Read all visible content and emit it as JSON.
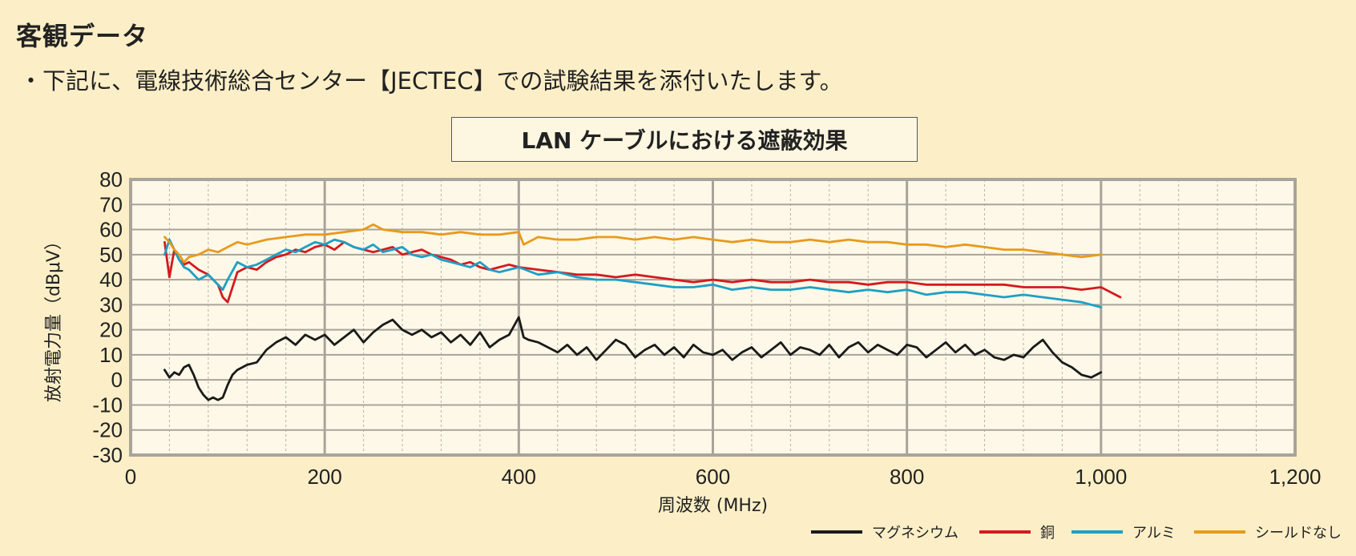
{
  "heading": "客観データ",
  "note": "・下記に、電線技術総合センター【JECTEC】での試験結果を添付いたします。",
  "colors": {
    "background": "#fcefc7",
    "plot_background": "#fdf8e8",
    "grid_major": "#a9a49a",
    "grid_minor": "#b8b3a8"
  },
  "chart_data": {
    "type": "line",
    "title": "LAN ケーブルにおける遮蔽効果",
    "xlabel": "周波数 (MHz)",
    "ylabel": "放射電力量（dBμV）",
    "xlim": [
      0,
      1200
    ],
    "ylim": [
      -30,
      80
    ],
    "xticks": [
      0,
      200,
      400,
      600,
      800,
      1000,
      1200
    ],
    "xtick_labels": [
      "0",
      "200",
      "400",
      "600",
      "800",
      "1,000",
      "1,200"
    ],
    "yticks": [
      -30,
      -20,
      -10,
      0,
      10,
      20,
      30,
      40,
      50,
      60,
      70,
      80
    ],
    "ytick_labels": [
      "-30",
      "-20",
      "-10",
      "0",
      "10",
      "20",
      "30",
      "40",
      "50",
      "60",
      "70",
      "80"
    ],
    "grid": true,
    "legend_position": "bottom-right",
    "series": [
      {
        "name": "マグネシウム",
        "color": "#1a1a1a",
        "x": [
          35,
          40,
          45,
          50,
          55,
          60,
          65,
          70,
          75,
          80,
          85,
          90,
          95,
          100,
          105,
          110,
          120,
          130,
          140,
          150,
          160,
          170,
          180,
          190,
          200,
          210,
          220,
          230,
          240,
          250,
          260,
          270,
          280,
          290,
          300,
          310,
          320,
          330,
          340,
          350,
          360,
          370,
          380,
          390,
          400,
          405,
          410,
          420,
          430,
          440,
          450,
          460,
          470,
          480,
          490,
          500,
          510,
          520,
          530,
          540,
          550,
          560,
          570,
          580,
          590,
          600,
          610,
          620,
          630,
          640,
          650,
          660,
          670,
          680,
          690,
          700,
          710,
          720,
          730,
          740,
          750,
          760,
          770,
          780,
          790,
          800,
          810,
          820,
          830,
          840,
          850,
          860,
          870,
          880,
          890,
          900,
          910,
          920,
          930,
          940,
          950,
          960,
          970,
          980,
          990,
          1000
        ],
        "values": [
          4,
          1,
          3,
          2,
          5,
          6,
          2,
          -3,
          -6,
          -8,
          -7,
          -8,
          -7,
          -2,
          2,
          4,
          6,
          7,
          12,
          15,
          17,
          14,
          18,
          16,
          18,
          14,
          17,
          20,
          15,
          19,
          22,
          24,
          20,
          18,
          20,
          17,
          19,
          15,
          18,
          14,
          19,
          13,
          16,
          18,
          25,
          17,
          16,
          15,
          13,
          11,
          14,
          10,
          13,
          8,
          12,
          16,
          14,
          9,
          12,
          14,
          10,
          13,
          9,
          14,
          11,
          10,
          12,
          8,
          11,
          13,
          9,
          12,
          15,
          10,
          13,
          12,
          10,
          14,
          9,
          13,
          15,
          11,
          14,
          12,
          10,
          14,
          13,
          9,
          12,
          15,
          11,
          14,
          10,
          12,
          9,
          8,
          10,
          9,
          13,
          16,
          11,
          7,
          5,
          2,
          1,
          3
        ]
      },
      {
        "name": "銅",
        "color": "#d41a20",
        "x": [
          35,
          40,
          45,
          50,
          55,
          60,
          70,
          80,
          90,
          95,
          100,
          110,
          120,
          130,
          140,
          150,
          160,
          170,
          180,
          190,
          200,
          210,
          220,
          230,
          240,
          250,
          260,
          270,
          280,
          290,
          300,
          310,
          320,
          330,
          340,
          350,
          360,
          370,
          380,
          390,
          400,
          420,
          440,
          460,
          480,
          500,
          520,
          540,
          560,
          580,
          600,
          620,
          640,
          660,
          680,
          700,
          720,
          740,
          760,
          780,
          800,
          820,
          840,
          860,
          880,
          900,
          920,
          940,
          960,
          980,
          1000,
          1010,
          1020
        ],
        "values": [
          55,
          41,
          52,
          48,
          46,
          47,
          44,
          42,
          38,
          33,
          31,
          43,
          45,
          44,
          47,
          49,
          50,
          52,
          51,
          53,
          54,
          52,
          55,
          53,
          52,
          51,
          52,
          53,
          50,
          51,
          52,
          50,
          49,
          48,
          46,
          47,
          45,
          44,
          45,
          46,
          45,
          44,
          43,
          42,
          42,
          41,
          42,
          41,
          40,
          39,
          40,
          39,
          40,
          39,
          39,
          40,
          39,
          39,
          38,
          39,
          39,
          38,
          38,
          38,
          38,
          38,
          37,
          37,
          37,
          36,
          37,
          35,
          33
        ]
      },
      {
        "name": "アルミ",
        "color": "#1e9fc4",
        "x": [
          35,
          40,
          45,
          50,
          55,
          60,
          70,
          80,
          90,
          95,
          100,
          110,
          120,
          130,
          140,
          150,
          160,
          170,
          180,
          190,
          200,
          210,
          220,
          230,
          240,
          250,
          260,
          270,
          280,
          290,
          300,
          310,
          320,
          330,
          340,
          350,
          360,
          370,
          380,
          390,
          400,
          420,
          440,
          460,
          480,
          500,
          520,
          540,
          560,
          580,
          600,
          620,
          640,
          660,
          680,
          700,
          720,
          740,
          760,
          780,
          800,
          820,
          840,
          860,
          880,
          900,
          920,
          940,
          960,
          980,
          1000
        ],
        "values": [
          50,
          56,
          52,
          48,
          45,
          44,
          40,
          42,
          38,
          36,
          40,
          47,
          45,
          46,
          48,
          50,
          52,
          51,
          53,
          55,
          54,
          56,
          55,
          53,
          52,
          54,
          51,
          52,
          53,
          50,
          49,
          50,
          48,
          47,
          46,
          45,
          47,
          44,
          43,
          44,
          45,
          42,
          43,
          41,
          40,
          40,
          39,
          38,
          37,
          37,
          38,
          36,
          37,
          36,
          36,
          37,
          36,
          35,
          36,
          35,
          36,
          34,
          35,
          35,
          34,
          33,
          34,
          33,
          32,
          31,
          29
        ]
      },
      {
        "name": "シールドなし",
        "color": "#e89a1c",
        "x": [
          35,
          40,
          45,
          50,
          55,
          60,
          70,
          80,
          90,
          100,
          110,
          120,
          140,
          160,
          180,
          200,
          220,
          240,
          250,
          260,
          280,
          300,
          320,
          340,
          360,
          380,
          400,
          405,
          420,
          440,
          460,
          480,
          500,
          520,
          540,
          560,
          580,
          600,
          620,
          640,
          660,
          680,
          700,
          720,
          740,
          760,
          780,
          800,
          820,
          840,
          860,
          880,
          900,
          920,
          940,
          960,
          980,
          1000
        ],
        "values": [
          57,
          55,
          52,
          50,
          47,
          49,
          50,
          52,
          51,
          53,
          55,
          54,
          56,
          57,
          58,
          58,
          59,
          60,
          62,
          60,
          59,
          59,
          58,
          59,
          58,
          58,
          59,
          54,
          57,
          56,
          56,
          57,
          57,
          56,
          57,
          56,
          57,
          56,
          55,
          56,
          55,
          55,
          56,
          55,
          56,
          55,
          55,
          54,
          54,
          53,
          54,
          53,
          52,
          52,
          51,
          50,
          49,
          50
        ]
      }
    ]
  }
}
